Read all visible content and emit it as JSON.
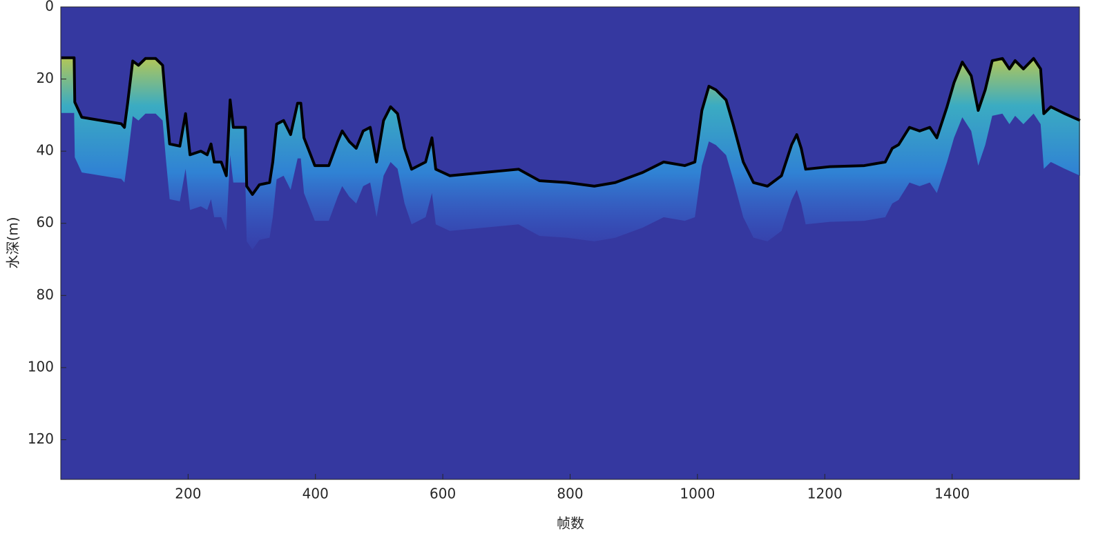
{
  "chart_data": {
    "type": "line",
    "xlabel": "帧数",
    "ylabel": "水深(m)",
    "xlim": [
      0,
      1600
    ],
    "ylim": [
      0,
      131
    ],
    "y_reversed": true,
    "xticks": [
      200,
      400,
      600,
      800,
      1000,
      1200,
      1400
    ],
    "yticks": [
      0,
      20,
      40,
      60,
      80,
      100,
      120
    ],
    "background_color": "#3538a0",
    "series": [
      {
        "color": "#000000",
        "x": [
          1,
          21,
          22,
          33,
          95,
          100,
          105,
          113,
          122,
          133,
          149,
          160,
          165,
          171,
          187,
          196,
          203,
          220,
          230,
          236,
          241,
          252,
          260,
          266,
          271,
          290,
          292,
          301,
          312,
          328,
          333,
          339,
          350,
          361,
          372,
          377,
          382,
          399,
          421,
          435,
          442,
          453,
          464,
          475,
          486,
          496,
          507,
          518,
          529,
          540,
          551,
          573,
          583,
          589,
          611,
          665,
          719,
          752,
          795,
          838,
          871,
          914,
          947,
          980,
          996,
          1007,
          1018,
          1029,
          1045,
          1056,
          1072,
          1088,
          1110,
          1132,
          1148,
          1156,
          1163,
          1170,
          1208,
          1262,
          1295,
          1306,
          1316,
          1333,
          1349,
          1365,
          1376,
          1392,
          1403,
          1416,
          1430,
          1441,
          1452,
          1463,
          1479,
          1490,
          1499,
          1512,
          1528,
          1539,
          1544,
          1555,
          1577,
          1601
        ],
        "values": [
          14.1,
          14.1,
          26.4,
          30.6,
          32.4,
          33.4,
          26.7,
          15,
          16.2,
          14.3,
          14.3,
          16.2,
          26.7,
          38,
          38.6,
          29.6,
          41,
          40,
          41,
          38,
          43,
          43,
          46.8,
          25.8,
          33.4,
          33.4,
          49.7,
          52,
          49.3,
          48.7,
          43,
          32.5,
          31.5,
          35.4,
          26.7,
          26.7,
          36.3,
          44,
          44,
          37.3,
          34.4,
          37.3,
          39.2,
          34.4,
          33.4,
          43,
          31.5,
          27.7,
          29.6,
          39.2,
          45,
          43,
          36.3,
          45,
          46.8,
          45.9,
          45,
          48.2,
          48.7,
          49.7,
          48.7,
          45.9,
          43,
          44,
          43,
          28.7,
          22,
          23,
          25.8,
          32.5,
          43,
          48.7,
          49.7,
          46.8,
          38.2,
          35.4,
          39.2,
          45,
          44.3,
          44,
          43,
          39.2,
          38.2,
          33.4,
          34.4,
          33.4,
          36.3,
          27.7,
          21,
          15.3,
          19.1,
          28.7,
          23,
          14.9,
          14.3,
          17.2,
          14.9,
          17.2,
          14.3,
          17.2,
          29.6,
          27.7,
          29.6,
          31.5
        ]
      }
    ]
  }
}
